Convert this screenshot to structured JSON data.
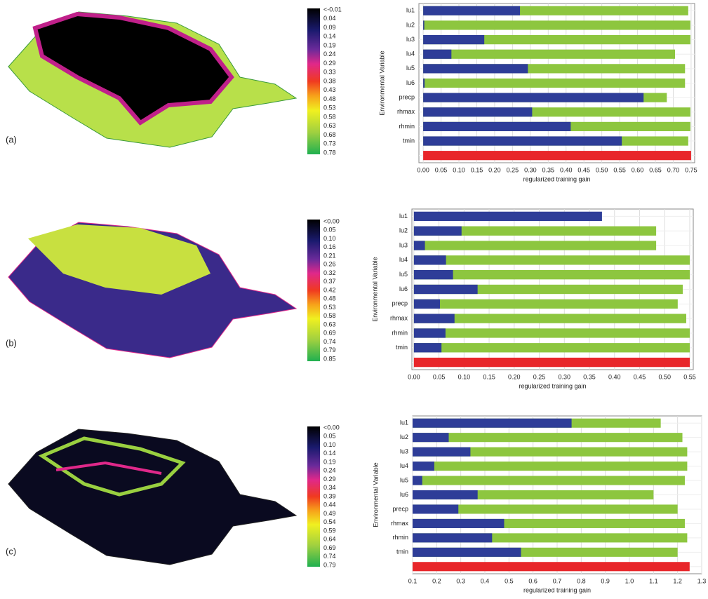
{
  "chart_data": [
    {
      "type": "map",
      "panel_label": "(a)",
      "colorbar_labels": [
        "<-0.01",
        "0.04",
        "0.09",
        "0.14",
        "0.19",
        "0.24",
        "0.29",
        "0.33",
        "0.38",
        "0.43",
        "0.48",
        "0.53",
        "0.58",
        "0.63",
        "0.68",
        "0.73",
        "0.78"
      ]
    },
    {
      "type": "bar",
      "orientation": "horizontal",
      "categories": [
        "lu1",
        "lu2",
        "lu3",
        "lu4",
        "lu5",
        "lu6",
        "precp",
        "rhmax",
        "rhmin",
        "tmin",
        null
      ],
      "series": [
        {
          "color": "#8dc63f",
          "values": [
            0.742,
            0.748,
            0.748,
            0.705,
            0.733,
            0.733,
            0.682,
            0.748,
            0.748,
            0.742,
            null
          ]
        },
        {
          "color": "#2e3d98",
          "values": [
            0.271,
            0.003,
            0.171,
            0.079,
            0.293,
            0.004,
            0.617,
            0.305,
            0.413,
            0.556,
            null
          ]
        },
        {
          "color": "#e8262a",
          "values": [
            null,
            null,
            null,
            null,
            null,
            null,
            null,
            null,
            null,
            null,
            0.75
          ]
        }
      ],
      "xlim": [
        -0.012,
        0.76
      ],
      "xticks": [
        {
          "value": 0,
          "label": "0.00"
        },
        0.05,
        {
          "value": 0.1,
          "label": "0.10"
        },
        0.15,
        {
          "value": 0.2,
          "label": "0.20"
        },
        0.25,
        {
          "value": 0.3,
          "label": "0.30"
        },
        0.35,
        {
          "value": 0.4,
          "label": "0.40"
        },
        0.45,
        {
          "value": 0.5,
          "label": "0.50"
        },
        0.55,
        {
          "value": 0.6,
          "label": "0.60"
        },
        0.65,
        {
          "value": 0.7,
          "label": "0.70"
        },
        0.75
      ],
      "x_label": "regularized training gain",
      "y_label": "Environmental Variable",
      "grid": true
    },
    {
      "type": "map",
      "panel_label": "(b)",
      "colorbar_labels": [
        "<0.00",
        "0.05",
        "0.10",
        "0.16",
        "0.21",
        "0.26",
        "0.32",
        "0.37",
        "0.42",
        "0.48",
        "0.53",
        "0.58",
        "0.63",
        "0.69",
        "0.74",
        "0.79",
        "0.85"
      ]
    },
    {
      "type": "bar",
      "orientation": "horizontal",
      "categories": [
        "lu1",
        "lu2",
        "lu3",
        "lu4",
        "lu5",
        "lu6",
        "precp",
        "rhmax",
        "rhmin",
        "tmin",
        null
      ],
      "series": [
        {
          "color": "#8dc63f",
          "values": [
            null,
            0.483,
            0.483,
            0.55,
            0.55,
            0.536,
            0.526,
            0.543,
            0.55,
            0.55,
            null
          ]
        },
        {
          "color": "#2e3d98",
          "values": [
            0.375,
            0.095,
            0.022,
            0.064,
            0.078,
            0.127,
            0.052,
            0.081,
            0.063,
            0.055,
            null
          ]
        },
        {
          "color": "#e8262a",
          "values": [
            null,
            null,
            null,
            null,
            null,
            null,
            null,
            null,
            null,
            null,
            0.55
          ]
        }
      ],
      "xlim": [
        -0.004,
        0.557
      ],
      "xticks": [
        {
          "value": 0,
          "label": "0.00"
        },
        0.05,
        {
          "value": 0.1,
          "label": "0.10"
        },
        0.15,
        {
          "value": 0.2,
          "label": "0.20"
        },
        0.25,
        {
          "value": 0.3,
          "label": "0.30"
        },
        0.35,
        {
          "value": 0.4,
          "label": "0.40"
        },
        0.45,
        {
          "value": 0.5,
          "label": "0.50"
        },
        0.55
      ],
      "x_label": "regularized training gain",
      "y_label": "Environmental Variable",
      "grid": true
    },
    {
      "type": "map",
      "panel_label": "(c)",
      "colorbar_labels": [
        "<0.00",
        "0.05",
        "0.10",
        "0.14",
        "0.19",
        "0.24",
        "0.29",
        "0.34",
        "0.39",
        "0.44",
        "0.49",
        "0.54",
        "0.59",
        "0.64",
        "0.69",
        "0.74",
        "0.79"
      ]
    },
    {
      "type": "bar",
      "orientation": "horizontal",
      "categories": [
        "lu1",
        "lu2",
        "lu3",
        "lu4",
        "lu5",
        "lu6",
        "precp",
        "rhmax",
        "rhmin",
        "tmin",
        null
      ],
      "series": [
        {
          "color": "#8dc63f",
          "values": [
            1.13,
            1.22,
            1.24,
            1.24,
            1.23,
            1.1,
            1.2,
            1.23,
            1.24,
            1.2,
            null
          ]
        },
        {
          "color": "#2e3d98",
          "values": [
            0.76,
            0.25,
            0.34,
            0.19,
            0.14,
            0.37,
            0.29,
            0.48,
            0.43,
            0.55,
            null
          ]
        },
        {
          "color": "#e8262a",
          "values": [
            null,
            null,
            null,
            null,
            null,
            null,
            null,
            null,
            null,
            null,
            1.25
          ]
        }
      ],
      "xlim": [
        0.1,
        1.3
      ],
      "xticks": [
        0.1,
        0.2,
        0.3,
        0.4,
        0.5,
        0.6,
        0.7,
        0.8,
        0.9,
        {
          "value": 1,
          "label": "1.0"
        },
        1.1,
        1.2,
        1.3
      ],
      "x_label": "regularized training gain",
      "y_label": "Environmental Variable",
      "grid": true
    }
  ]
}
